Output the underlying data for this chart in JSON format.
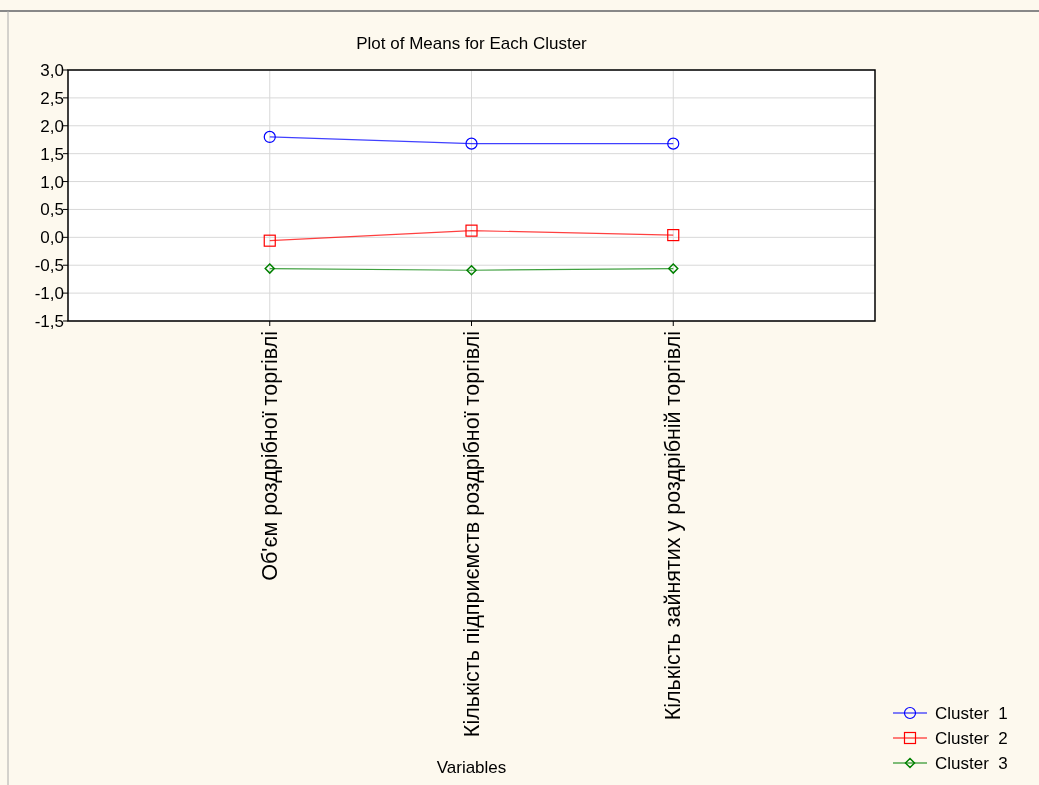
{
  "chart_data": {
    "type": "line",
    "title": "Plot of Means for Each Cluster",
    "xlabel": "Variables",
    "categories": [
      "Об'єм роздрібної торгівлі",
      "Кількість підприємств роздрібної торгівлі",
      "Кількість зайнятих у роздрібній торгівлі"
    ],
    "series": [
      {
        "name": "Cluster  1",
        "color": "#0000ff",
        "marker": "circle",
        "values": [
          1.8,
          1.68,
          1.68
        ]
      },
      {
        "name": "Cluster  2",
        "color": "#ff0000",
        "marker": "square",
        "values": [
          -0.06,
          0.12,
          0.04
        ]
      },
      {
        "name": "Cluster  3",
        "color": "#008000",
        "marker": "diamond",
        "values": [
          -0.56,
          -0.59,
          -0.56
        ]
      }
    ],
    "ylim": [
      -1.5,
      3
    ],
    "yticks": [
      {
        "value": -1.5,
        "label": "-1,5"
      },
      {
        "value": -1,
        "label": "-1,0"
      },
      {
        "value": -0.5,
        "label": "-0,5"
      },
      {
        "value": 0,
        "label": "0,0"
      },
      {
        "value": 0.5,
        "label": "0,5"
      },
      {
        "value": 1,
        "label": "1,0"
      },
      {
        "value": 1.5,
        "label": "1,5"
      },
      {
        "value": 2,
        "label": "2,0"
      },
      {
        "value": 2.5,
        "label": "2,5"
      },
      {
        "value": 3,
        "label": "3,0"
      }
    ],
    "grid": true,
    "legend": "bottom right",
    "line_style": "solid"
  }
}
